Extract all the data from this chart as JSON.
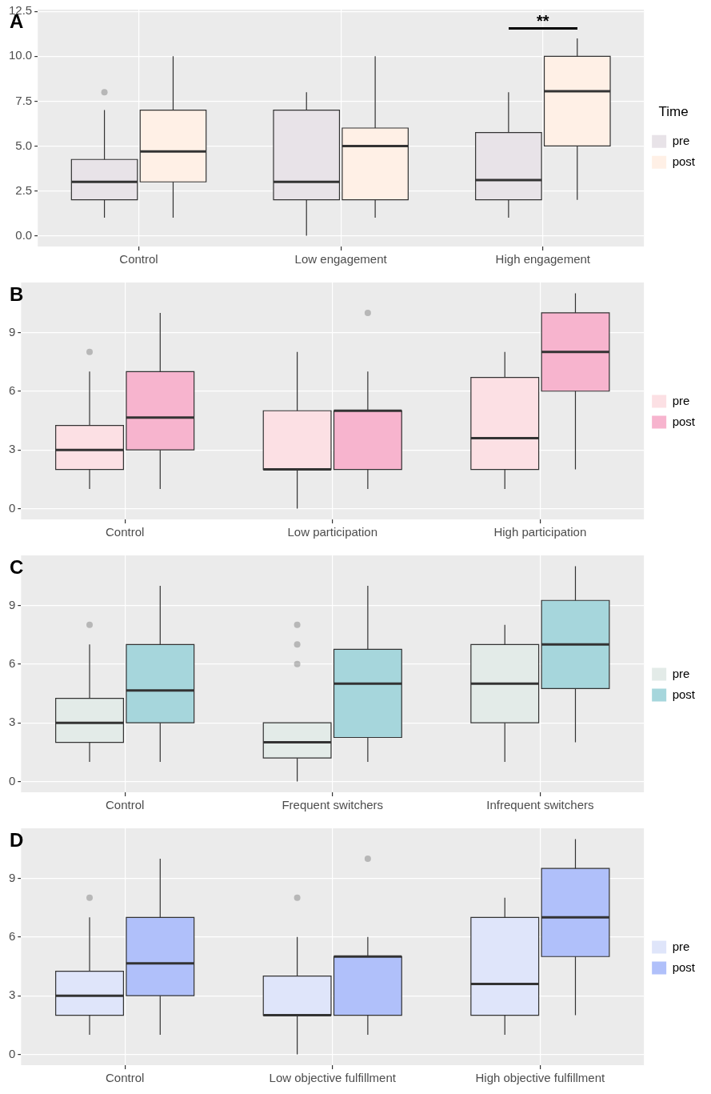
{
  "chart_data": [
    {
      "type": "box",
      "title": "A",
      "categories": [
        "Control",
        "Low engagement",
        "High engagement"
      ],
      "legend": "right",
      "legend_title": "Time",
      "grid": true,
      "ylim": [
        -0.6,
        12.6
      ],
      "yticks": [
        {
          "value": 0,
          "label": "0.0"
        },
        {
          "value": 2.5,
          "label": "2.5"
        },
        {
          "value": 5,
          "label": "5.0"
        },
        {
          "value": 7.5,
          "label": "7.5"
        },
        {
          "value": 10,
          "label": "10.0"
        },
        {
          "value": 12.5,
          "label": "12.5"
        }
      ],
      "series": [
        {
          "name": "pre",
          "color": "#e8e3e8",
          "boxes": [
            {
              "low": 1,
              "q1": 2,
              "median": 3,
              "q3": 4.25,
              "high": 7,
              "outliers": [
                8
              ]
            },
            {
              "low": 0,
              "q1": 2,
              "median": 3,
              "q3": 7,
              "high": 8
            },
            {
              "low": 1,
              "q1": 2,
              "median": 3.1,
              "q3": 5.75,
              "high": 8
            }
          ]
        },
        {
          "name": "post",
          "color": "#fff0e6",
          "boxes": [
            {
              "low": 1,
              "q1": 3,
              "median": 4.7,
              "q3": 7,
              "high": 10
            },
            {
              "low": 1,
              "q1": 2,
              "median": 5,
              "q3": 6,
              "high": 10
            },
            {
              "low": 2,
              "q1": 5,
              "median": 8.05,
              "q3": 10,
              "high": 11
            }
          ]
        }
      ],
      "annotations": [
        "**"
      ]
    },
    {
      "type": "box",
      "title": "B",
      "categories": [
        "Control",
        "Low participation",
        "High participation"
      ],
      "legend": "right",
      "grid": true,
      "ylim": [
        -0.55,
        11.55
      ],
      "yticks": [
        0,
        3,
        6,
        9
      ],
      "series": [
        {
          "name": "pre",
          "color": "#fce0e4",
          "boxes": [
            {
              "low": 1,
              "q1": 2,
              "median": 3,
              "q3": 4.25,
              "high": 7,
              "outliers": [
                8
              ]
            },
            {
              "low": 0,
              "q1": 2,
              "median": 2,
              "q3": 5,
              "high": 8
            },
            {
              "low": 1,
              "q1": 2,
              "median": 3.6,
              "q3": 6.7,
              "high": 8
            }
          ]
        },
        {
          "name": "post",
          "color": "#f7b4ce",
          "boxes": [
            {
              "low": 1,
              "q1": 3,
              "median": 4.65,
              "q3": 7,
              "high": 10
            },
            {
              "low": 1,
              "q1": 2,
              "median": 5,
              "q3": 5,
              "high": 7,
              "outliers": [
                10
              ]
            },
            {
              "low": 2,
              "q1": 6,
              "median": 8,
              "q3": 10,
              "high": 11
            }
          ]
        }
      ]
    },
    {
      "type": "box",
      "title": "C",
      "categories": [
        "Control",
        "Frequent switchers",
        "Infrequent switchers"
      ],
      "legend": "right",
      "grid": true,
      "ylim": [
        -0.55,
        11.55
      ],
      "yticks": [
        0,
        3,
        6,
        9
      ],
      "series": [
        {
          "name": "pre",
          "color": "#e3ebe8",
          "boxes": [
            {
              "low": 1,
              "q1": 2,
              "median": 3,
              "q3": 4.25,
              "high": 7,
              "outliers": [
                8
              ]
            },
            {
              "low": 0,
              "q1": 1.2,
              "median": 2,
              "q3": 3,
              "high": 3,
              "outliers": [
                6,
                7,
                8
              ]
            },
            {
              "low": 1,
              "q1": 3,
              "median": 5,
              "q3": 7,
              "high": 8
            }
          ]
        },
        {
          "name": "post",
          "color": "#a6d6dc",
          "boxes": [
            {
              "low": 1,
              "q1": 3,
              "median": 4.65,
              "q3": 7,
              "high": 10
            },
            {
              "low": 1,
              "q1": 2.25,
              "median": 5,
              "q3": 6.75,
              "high": 10
            },
            {
              "low": 2,
              "q1": 4.75,
              "median": 7,
              "q3": 9.25,
              "high": 11
            }
          ]
        }
      ]
    },
    {
      "type": "box",
      "title": "D",
      "categories": [
        "Control",
        "Low objective fulfillment",
        "High objective fulfillment"
      ],
      "legend": "right",
      "grid": true,
      "ylim": [
        -0.55,
        11.55
      ],
      "yticks": [
        0,
        3,
        6,
        9
      ],
      "series": [
        {
          "name": "pre",
          "color": "#dfe5fa",
          "boxes": [
            {
              "low": 1,
              "q1": 2,
              "median": 3,
              "q3": 4.25,
              "high": 7,
              "outliers": [
                8
              ]
            },
            {
              "low": 0,
              "q1": 2,
              "median": 2,
              "q3": 4,
              "high": 6,
              "outliers": [
                8
              ]
            },
            {
              "low": 1,
              "q1": 2,
              "median": 3.6,
              "q3": 7,
              "high": 8
            }
          ]
        },
        {
          "name": "post",
          "color": "#b0c0fa",
          "boxes": [
            {
              "low": 1,
              "q1": 3,
              "median": 4.65,
              "q3": 7,
              "high": 10
            },
            {
              "low": 1,
              "q1": 2,
              "median": 5,
              "q3": 5,
              "high": 6,
              "outliers": [
                10
              ]
            },
            {
              "low": 2,
              "q1": 5,
              "median": 7,
              "q3": 9.5,
              "high": 11
            }
          ]
        }
      ]
    }
  ]
}
